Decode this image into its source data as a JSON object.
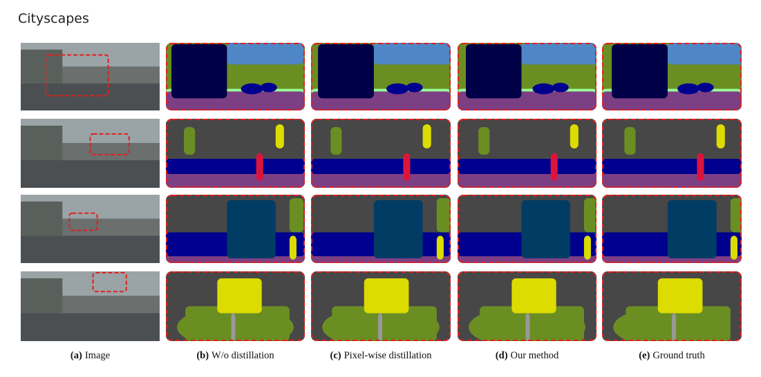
{
  "header": {
    "title": "Cityscapes"
  },
  "columns": [
    {
      "tag": "(a)",
      "label": "Image"
    },
    {
      "tag": "(b)",
      "label": "W/o distillation"
    },
    {
      "tag": "(c)",
      "label": "Pixel-wise distillation"
    },
    {
      "tag": "(d)",
      "label": "Our method"
    },
    {
      "tag": "(e)",
      "label": "Ground truth"
    }
  ]
}
